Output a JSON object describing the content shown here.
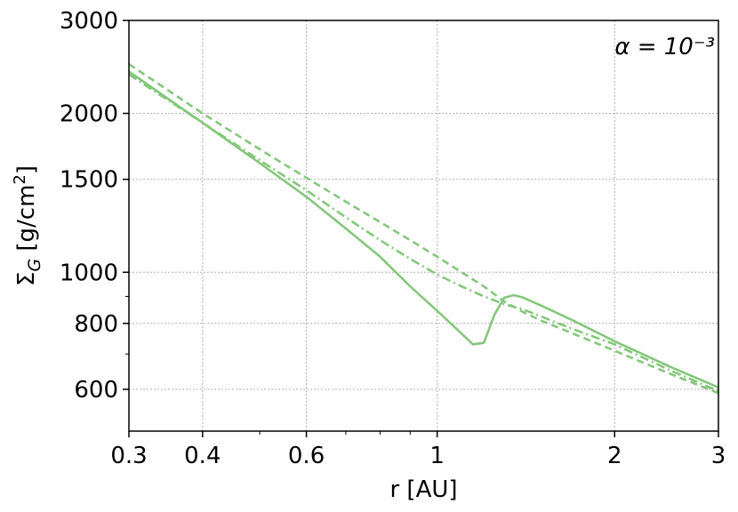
{
  "chart_data": {
    "type": "line",
    "title": "",
    "xlabel": "r [AU]",
    "ylabel": "Σ_G [g/cm²]",
    "xscale": "log",
    "yscale": "log",
    "xlim": [
      0.3,
      3
    ],
    "ylim": [
      500,
      3000
    ],
    "xticks": [
      0.3,
      0.4,
      0.6,
      1,
      2,
      3
    ],
    "xtick_labels": [
      "0.3",
      "0.4",
      "0.6",
      "1",
      "2",
      "3"
    ],
    "yticks": [
      600,
      800,
      1000,
      1500,
      2000,
      3000
    ],
    "ytick_labels": [
      "600",
      "800",
      "1000",
      "1500",
      "2000",
      "3000"
    ],
    "grid": true,
    "annotation": "α = 10⁻³",
    "line_color": "#84c77b",
    "series": [
      {
        "style": "solid",
        "x": [
          0.3,
          0.4,
          0.5,
          0.6,
          0.7,
          0.8,
          0.9,
          1.0,
          1.1,
          1.15,
          1.2,
          1.25,
          1.3,
          1.35,
          1.4,
          1.5,
          1.7,
          2.0,
          2.5,
          3.0
        ],
        "y": [
          2400,
          1920,
          1610,
          1390,
          1210,
          1070,
          940,
          845,
          765,
          730,
          735,
          830,
          895,
          905,
          895,
          865,
          810,
          740,
          660,
          605
        ]
      },
      {
        "style": "dashed",
        "x": [
          0.3,
          0.4,
          0.5,
          0.6,
          0.7,
          0.8,
          0.9,
          1.0,
          1.1,
          1.2,
          1.3,
          1.4,
          1.5,
          1.7,
          2.0,
          2.5,
          3.0
        ],
        "y": [
          2480,
          2000,
          1710,
          1510,
          1360,
          1245,
          1150,
          1070,
          1000,
          940,
          880,
          840,
          810,
          765,
          710,
          640,
          590
        ]
      },
      {
        "style": "dashdot",
        "x": [
          0.3,
          0.4,
          0.5,
          0.6,
          0.7,
          0.8,
          0.9,
          1.0,
          1.1,
          1.2,
          1.3,
          1.4,
          1.5,
          1.7,
          2.0,
          2.5,
          3.0
        ],
        "y": [
          2370,
          1920,
          1630,
          1430,
          1270,
          1150,
          1060,
          990,
          940,
          900,
          870,
          850,
          825,
          780,
          730,
          650,
          595
        ]
      }
    ]
  }
}
